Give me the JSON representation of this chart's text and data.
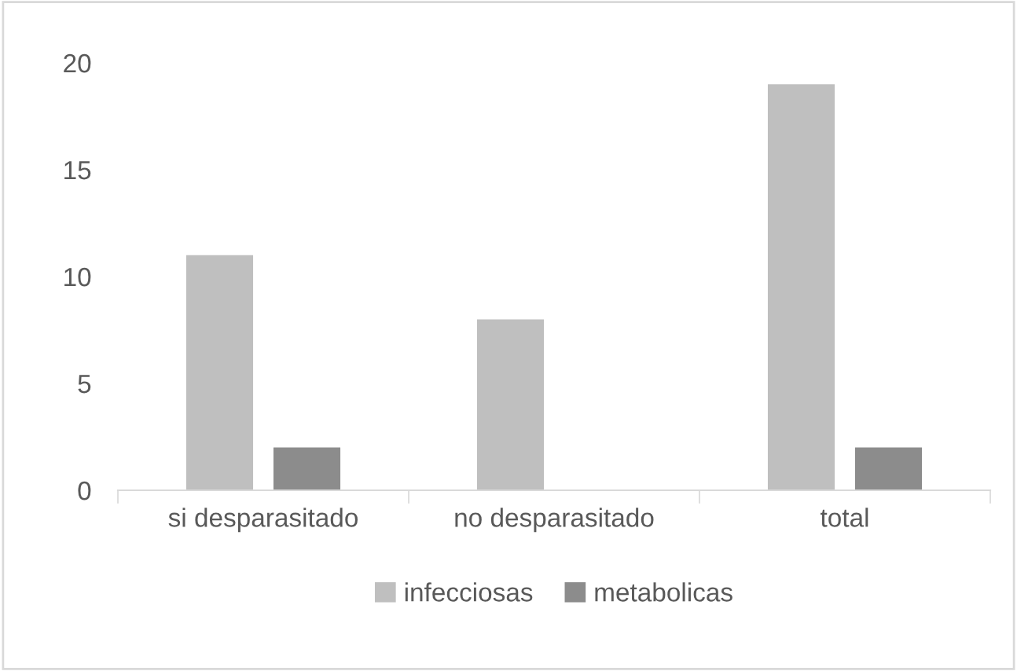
{
  "chart_data": {
    "type": "bar",
    "categories": [
      "si desparasitado",
      "no desparasitado",
      "total"
    ],
    "series": [
      {
        "name": "infecciosas",
        "color": "#bfbfbf",
        "values": [
          11,
          8,
          19
        ]
      },
      {
        "name": "metabolicas",
        "color": "#8c8c8c",
        "values": [
          2,
          0,
          2
        ]
      }
    ],
    "ylim": [
      0,
      20
    ],
    "yticks": [
      0,
      5,
      10,
      15,
      20
    ],
    "grid": false,
    "legend": "bottom"
  }
}
